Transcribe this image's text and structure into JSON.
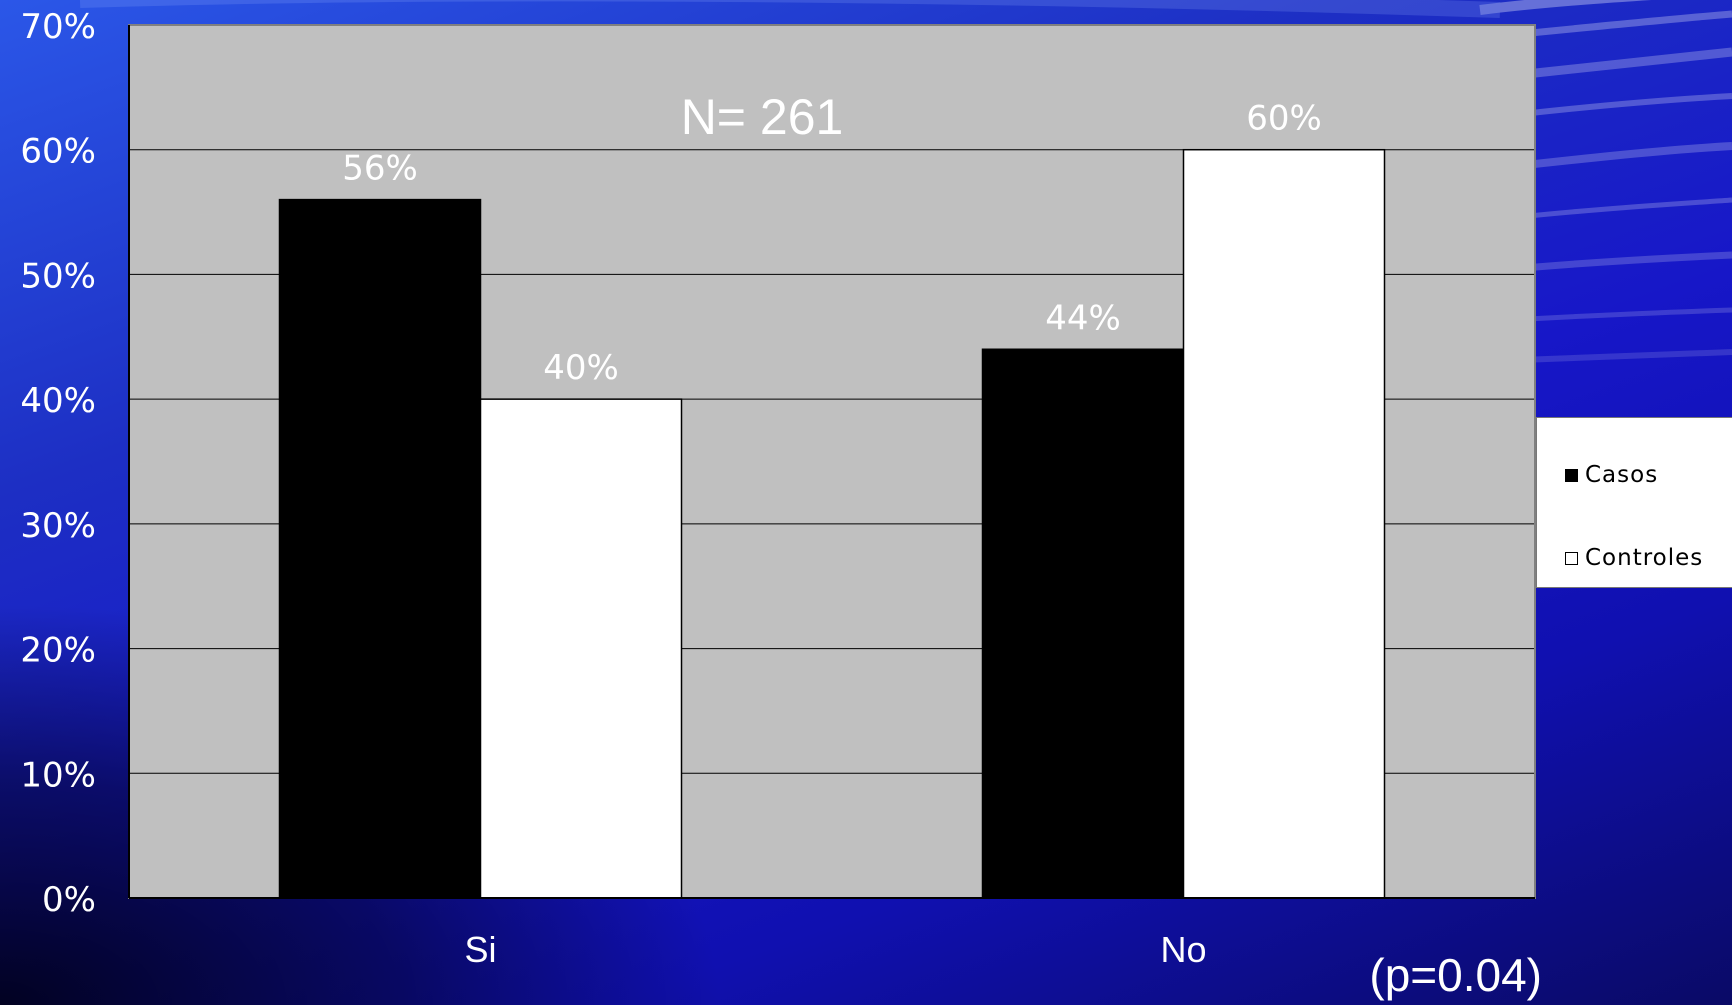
{
  "chart_data": {
    "type": "bar",
    "annotation_title": "N= 261",
    "categories": [
      "Si",
      "No"
    ],
    "series": [
      {
        "name": "Casos",
        "values": [
          56,
          44
        ],
        "color": "#000000"
      },
      {
        "name": "Controles",
        "values": [
          40,
          60
        ],
        "color": "#ffffff"
      }
    ],
    "data_labels": [
      [
        "56%",
        "44%"
      ],
      [
        "40%",
        "60%"
      ]
    ],
    "ylim": [
      0,
      70
    ],
    "yticks": [
      "0%",
      "10%",
      "20%",
      "30%",
      "40%",
      "50%",
      "60%",
      "70%"
    ],
    "grid": true,
    "legend_position": "right",
    "plot_background": "#c0c0c0",
    "footnote": "(p=0.04)"
  }
}
